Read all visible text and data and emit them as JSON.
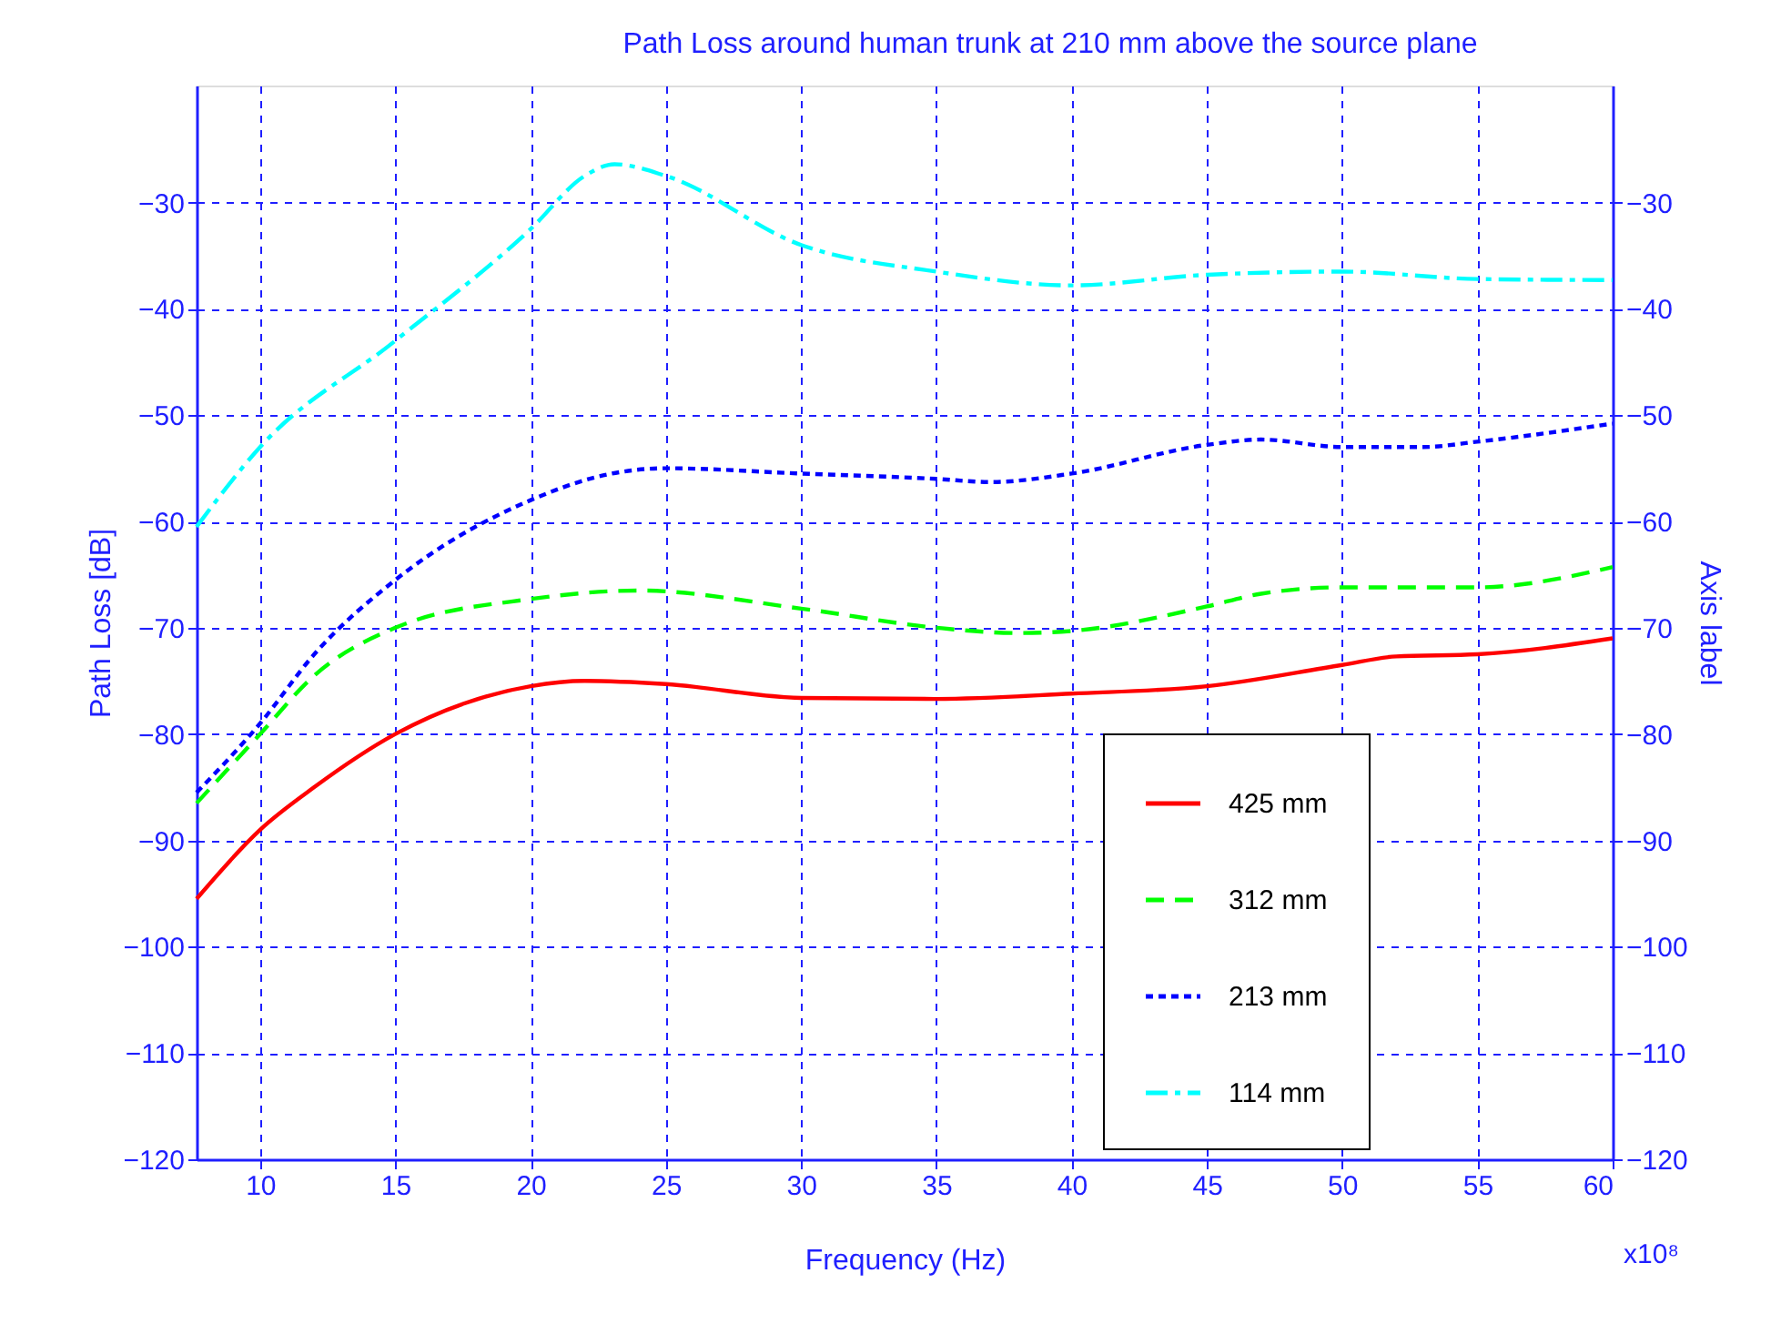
{
  "chart_data": {
    "type": "line",
    "title": "Path Loss around human trunk at  210 mm above the source plane",
    "xlabel": "Frequency (Hz)",
    "ylabel": "Path Loss [dB]",
    "y2label": "Axis label",
    "annotations": [
      "x10⁸"
    ],
    "xlim": [
      7.65,
      60
    ],
    "xticks": [
      10,
      15,
      20,
      25,
      30,
      35,
      40,
      45,
      50,
      55,
      60
    ],
    "ylim": [
      -120,
      -19
    ],
    "yticks": [
      -120,
      -110,
      -100,
      -90,
      -80,
      -70,
      -60,
      -50,
      -40,
      -30
    ],
    "y2lim": [
      -120,
      -19
    ],
    "y2ticks": [
      -120,
      -110,
      -100,
      -90,
      -80,
      -70,
      -60,
      -50,
      -40,
      -30
    ],
    "grid": true,
    "legend": "bottom right",
    "marker": "none",
    "series": [
      {
        "name": "425 mm",
        "color": "#ff0000",
        "line_style": "solid",
        "x": [
          7.65,
          10,
          12,
          15,
          20,
          22,
          25,
          30,
          35,
          40,
          45,
          50,
          52,
          55,
          60
        ],
        "values": [
          -95.5,
          -89,
          -85,
          -80,
          -75.5,
          -75,
          -75.3,
          -76.6,
          -76.7,
          -76.2,
          -75.5,
          -73.5,
          -72.7,
          -72.5,
          -71
        ]
      },
      {
        "name": "312 mm",
        "color": "#00ff00",
        "line_style": "dashed",
        "x": [
          7.65,
          10,
          12,
          15,
          20,
          24,
          30,
          35,
          38,
          40,
          45,
          47,
          50,
          55,
          60
        ],
        "values": [
          -86.5,
          -80,
          -74.5,
          -70,
          -67.3,
          -66.5,
          -68.2,
          -70,
          -70.5,
          -70.3,
          -68,
          -66.8,
          -66.2,
          -66.2,
          -64.3
        ]
      },
      {
        "name": "213 mm",
        "color": "#0000ff",
        "line_style": "dotted",
        "x": [
          7.65,
          10,
          12,
          15,
          20,
          23,
          25,
          30,
          35,
          37,
          40,
          45,
          47,
          50,
          53,
          55,
          60
        ],
        "values": [
          -85.5,
          -79,
          -72.5,
          -65.5,
          -58,
          -55.5,
          -55,
          -55.5,
          -56,
          -56.3,
          -55.5,
          -52.8,
          -52.3,
          -53,
          -53,
          -52.5,
          -50.8
        ]
      },
      {
        "name": "114 mm",
        "color": "#00ffff",
        "line_style": "dashdot",
        "x": [
          7.65,
          10,
          15,
          20,
          22,
          23.1,
          25,
          30,
          35,
          40,
          45,
          50,
          55,
          60
        ],
        "values": [
          -60.5,
          -53,
          -43,
          -32.5,
          -27.5,
          -26.4,
          -27.5,
          -34,
          -36.5,
          -37.8,
          -36.8,
          -36.5,
          -37.2,
          -37.3
        ]
      }
    ]
  }
}
